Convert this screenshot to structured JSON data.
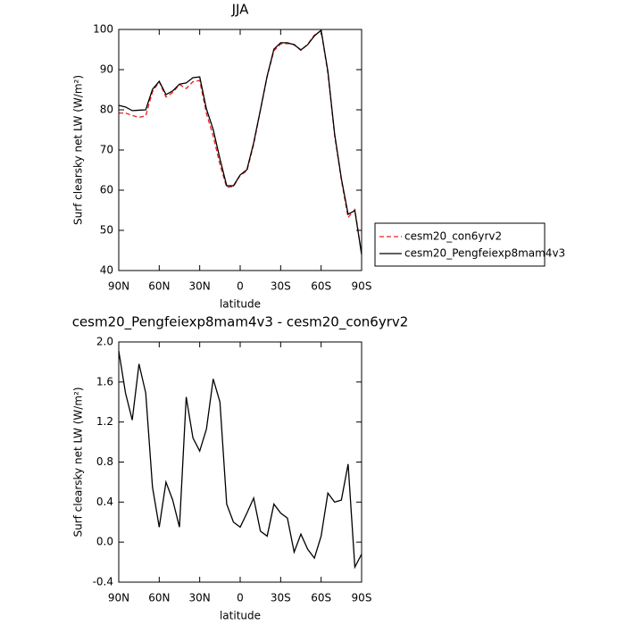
{
  "chart_data": [
    {
      "type": "line",
      "title": "JJA",
      "xlabel": "latitude",
      "ylabel": "Surf clearsky net LW (W/m²)",
      "x": [
        90,
        85,
        80,
        75,
        70,
        65,
        60,
        55,
        50,
        45,
        40,
        35,
        30,
        25,
        20,
        15,
        10,
        5,
        0,
        -5,
        -10,
        -15,
        -20,
        -25,
        -30,
        -35,
        -40,
        -45,
        -50,
        -55,
        -60,
        -65,
        -70,
        -75,
        -80,
        -85,
        -90
      ],
      "series": [
        {
          "name": "cesm20_con6yrv2",
          "color": "#e8201c",
          "line_style": "dashed",
          "values": [
            79.2,
            79.2,
            78.6,
            78.1,
            78.5,
            84.5,
            87.0,
            83.2,
            84.3,
            86.3,
            85.3,
            87.0,
            87.3,
            79.1,
            73.5,
            66.4,
            60.7,
            60.9,
            63.7,
            64.8,
            71.4,
            79.9,
            88.3,
            94.7,
            96.4,
            96.5,
            96.3,
            94.8,
            96.3,
            98.6,
            99.7,
            89.1,
            73.6,
            62.5,
            53.2,
            55.2,
            44.1
          ]
        },
        {
          "name": "cesm20_Pengfeiexp8mam4v3",
          "color": "#000000",
          "line_style": "solid",
          "values": [
            81.1,
            80.7,
            79.8,
            79.9,
            80.0,
            85.1,
            87.1,
            83.8,
            84.7,
            86.4,
            86.7,
            88.0,
            88.2,
            80.2,
            75.1,
            67.8,
            61.1,
            61.1,
            63.8,
            65.1,
            71.8,
            80.0,
            88.4,
            95.1,
            96.7,
            96.7,
            96.2,
            94.9,
            96.2,
            98.4,
            99.8,
            89.6,
            74.0,
            62.9,
            54.0,
            54.9,
            44.0
          ]
        }
      ],
      "xlim": [
        90,
        -90
      ],
      "xticks": [
        {
          "value": 90,
          "label": "90N"
        },
        {
          "value": 60,
          "label": "60N"
        },
        {
          "value": 30,
          "label": "30N"
        },
        0,
        {
          "value": -30,
          "label": "30S"
        },
        {
          "value": -60,
          "label": "60S"
        },
        {
          "value": -90,
          "label": "90S"
        }
      ],
      "ylim": [
        40,
        100
      ],
      "yticks": [
        40,
        50,
        60,
        70,
        80,
        90,
        100
      ],
      "legend": "outside-right"
    },
    {
      "type": "line",
      "title": "cesm20_Pengfeiexp8mam4v3 - cesm20_con6yrv2",
      "xlabel": "latitude",
      "ylabel": "Surf clearsky net LW (W/m²)",
      "x": [
        90,
        85,
        80,
        75,
        70,
        65,
        60,
        55,
        50,
        45,
        40,
        35,
        30,
        25,
        20,
        15,
        10,
        5,
        0,
        -5,
        -10,
        -15,
        -20,
        -25,
        -30,
        -35,
        -40,
        -45,
        -50,
        -55,
        -60,
        -65,
        -70,
        -75,
        -80,
        -85,
        -90
      ],
      "series": [
        {
          "color": "#000000",
          "line_style": "solid",
          "values": [
            1.91,
            1.49,
            1.22,
            1.78,
            1.49,
            0.55,
            0.15,
            0.6,
            0.42,
            0.15,
            1.45,
            1.04,
            0.91,
            1.13,
            1.63,
            1.4,
            0.38,
            0.2,
            0.15,
            0.29,
            0.44,
            0.11,
            0.06,
            0.38,
            0.29,
            0.24,
            -0.1,
            0.08,
            -0.07,
            -0.16,
            0.06,
            0.49,
            0.4,
            0.42,
            0.78,
            -0.25,
            -0.12
          ]
        }
      ],
      "xlim": [
        90,
        -90
      ],
      "xticks": [
        {
          "value": 90,
          "label": "90N"
        },
        {
          "value": 60,
          "label": "60N"
        },
        {
          "value": 30,
          "label": "30N"
        },
        0,
        {
          "value": -30,
          "label": "30S"
        },
        {
          "value": -60,
          "label": "60S"
        },
        {
          "value": -90,
          "label": "90S"
        }
      ],
      "ylim": [
        -0.4,
        2
      ],
      "yticks": [
        -0.4,
        {
          "value": 0,
          "label": "0.0"
        },
        0.4,
        0.8,
        1.2,
        1.6,
        {
          "value": 2,
          "label": "2.0"
        }
      ]
    }
  ]
}
